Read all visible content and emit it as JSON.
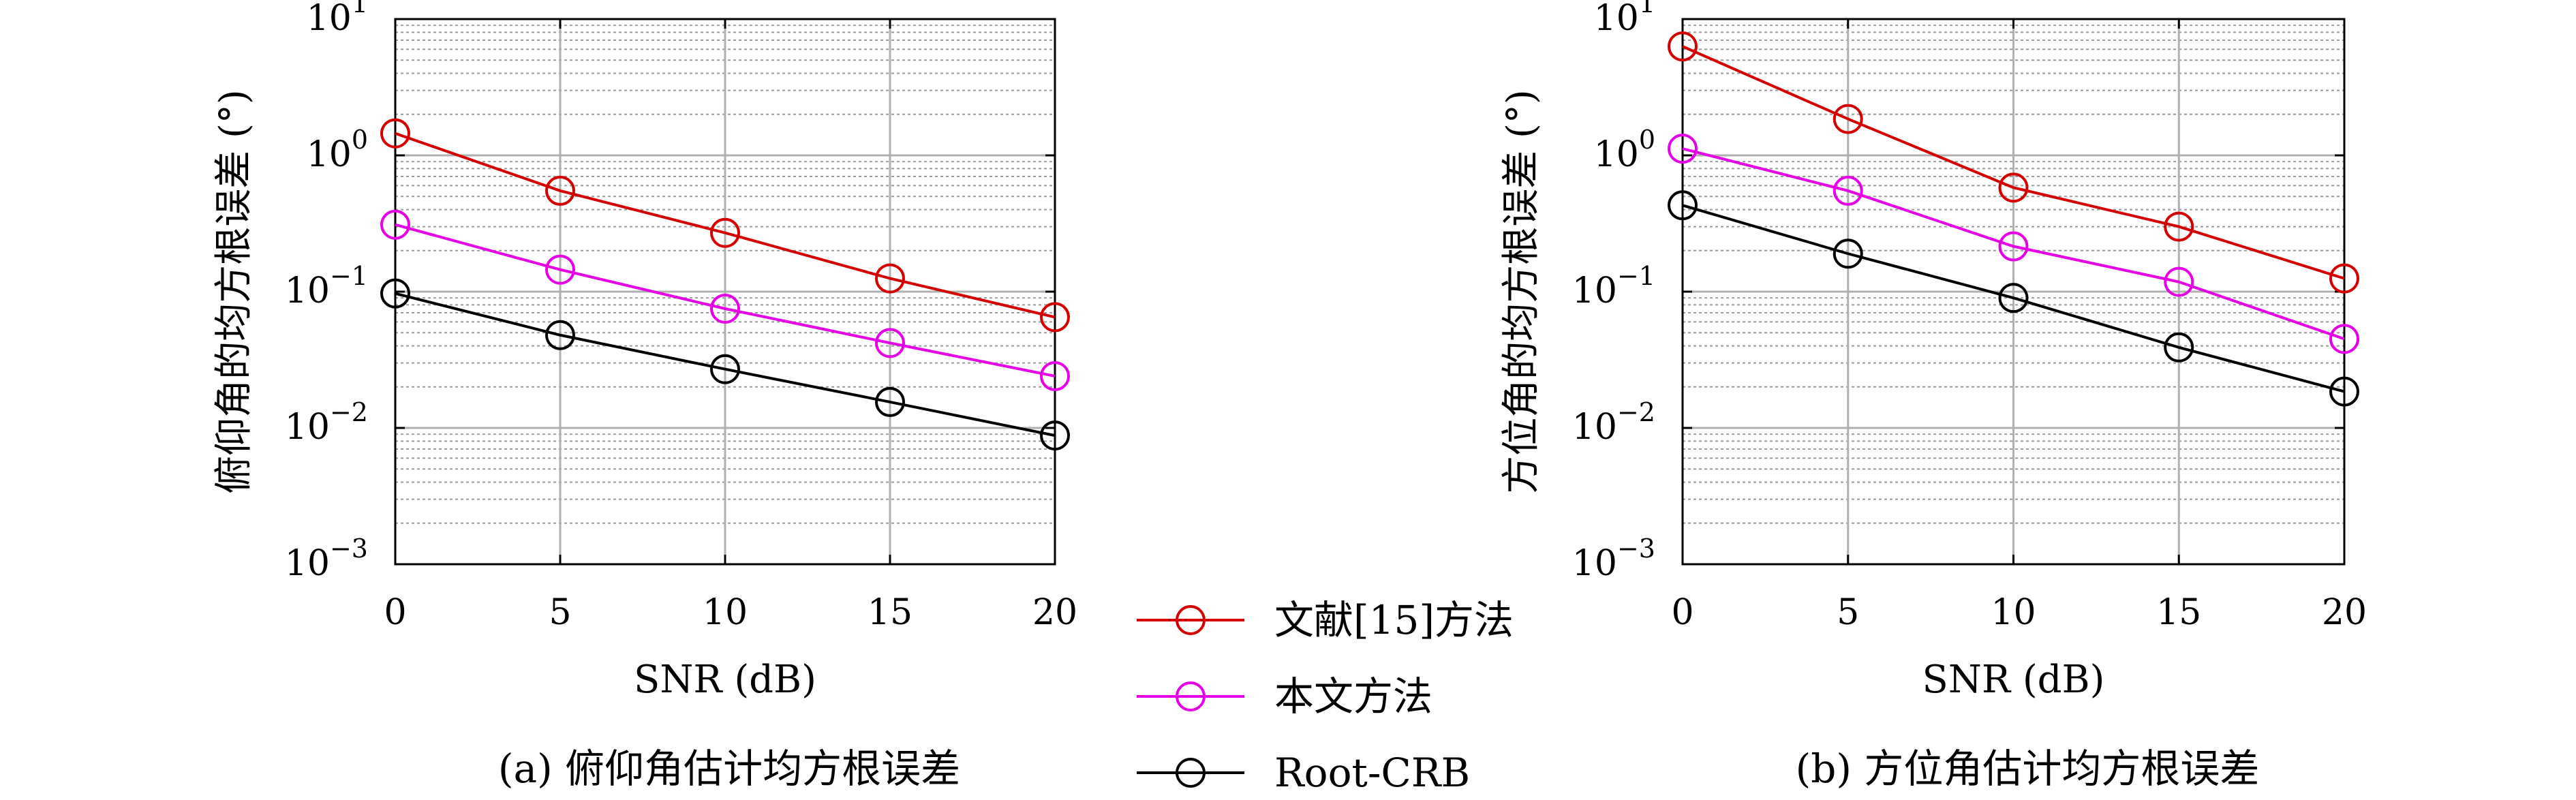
{
  "legend": [
    {
      "label": "文献[15]方法",
      "color": "#d40000"
    },
    {
      "label": "本文方法",
      "color": "#e600e6"
    },
    {
      "label": "Root-CRB",
      "color": "#000000"
    }
  ],
  "chart_data": [
    {
      "type": "line",
      "caption": "(a) 俯仰角估计均方根误差",
      "xlabel": "SNR (dB)",
      "ylabel": "俯仰角的均方根误差 (°)",
      "x": [
        0,
        5,
        10,
        15,
        20
      ],
      "xticks": [
        "0",
        "5",
        "10",
        "15",
        "20"
      ],
      "xlim": [
        0,
        20
      ],
      "yscale": "log",
      "ylim": [
        0.001,
        10
      ],
      "yticks": [
        {
          "base": "10",
          "exp": "1"
        },
        {
          "base": "10",
          "exp": "0"
        },
        {
          "base": "10",
          "exp": "−1"
        },
        {
          "base": "10",
          "exp": "−2"
        },
        {
          "base": "10",
          "exp": "−3"
        }
      ],
      "grid": true,
      "series": [
        {
          "name": "文献[15]方法",
          "color": "#d40000",
          "values": [
            1.45,
            0.55,
            0.27,
            0.125,
            0.065
          ]
        },
        {
          "name": "本文方法",
          "color": "#e600e6",
          "values": [
            0.31,
            0.145,
            0.075,
            0.042,
            0.024
          ]
        },
        {
          "name": "Root-CRB",
          "color": "#000000",
          "values": [
            0.097,
            0.048,
            0.027,
            0.0155,
            0.0088
          ]
        }
      ]
    },
    {
      "type": "line",
      "caption": "(b) 方位角估计均方根误差",
      "xlabel": "SNR (dB)",
      "ylabel": "方位角的均方根误差 (°)",
      "x": [
        0,
        5,
        10,
        15,
        20
      ],
      "xticks": [
        "0",
        "5",
        "10",
        "15",
        "20"
      ],
      "xlim": [
        0,
        20
      ],
      "yscale": "log",
      "ylim": [
        0.001,
        10
      ],
      "yticks": [
        {
          "base": "10",
          "exp": "1"
        },
        {
          "base": "10",
          "exp": "0"
        },
        {
          "base": "10",
          "exp": "−1"
        },
        {
          "base": "10",
          "exp": "−2"
        },
        {
          "base": "10",
          "exp": "−3"
        }
      ],
      "grid": true,
      "series": [
        {
          "name": "文献[15]方法",
          "color": "#d40000",
          "values": [
            6.3,
            1.85,
            0.58,
            0.3,
            0.125
          ]
        },
        {
          "name": "本文方法",
          "color": "#e600e6",
          "values": [
            1.12,
            0.55,
            0.215,
            0.118,
            0.045
          ]
        },
        {
          "name": "Root-CRB",
          "color": "#000000",
          "values": [
            0.43,
            0.19,
            0.09,
            0.039,
            0.0185
          ]
        }
      ]
    }
  ]
}
